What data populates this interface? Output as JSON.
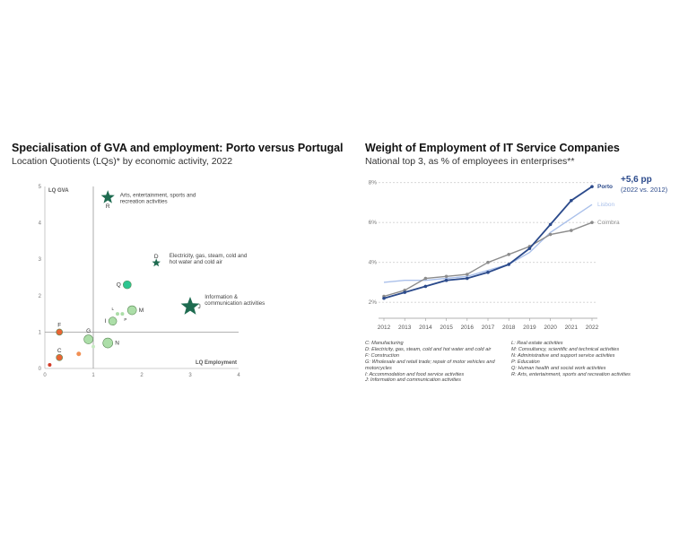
{
  "chart_data": [
    {
      "type": "scatter",
      "title": "Specialisation of GVA and employment: Porto versus Portugal",
      "subtitle": "Location Quotients (LQs)* by economic activity, 2022",
      "xlabel": "LQ Employment",
      "ylabel": "LQ GVA",
      "xlim": [
        0,
        4
      ],
      "ylim": [
        0,
        5
      ],
      "xticks": [
        "0",
        "1",
        "2",
        "3",
        "4"
      ],
      "yticks": [
        "0",
        "1",
        "2",
        "3",
        "4",
        "5"
      ],
      "reference_lines": {
        "x": 1,
        "y": 1
      },
      "colors": {
        "low": "#e85d2a",
        "mid": "#a8dca3",
        "high": "#22c28a",
        "star": "#1e6b50"
      },
      "points": [
        {
          "label": "",
          "x": 0.1,
          "y": 0.1,
          "size": 3,
          "color": "#d0311c",
          "shape": "circle",
          "label_pos": "none"
        },
        {
          "label": "C",
          "x": 0.3,
          "y": 0.3,
          "size": 6,
          "color": "#e85d2a",
          "shape": "circle",
          "label_pos": "above"
        },
        {
          "label": "",
          "x": 0.7,
          "y": 0.4,
          "size": 4,
          "color": "#f08a4b",
          "shape": "circle",
          "label_pos": "none"
        },
        {
          "label": "F",
          "x": 0.3,
          "y": 1.0,
          "size": 6,
          "color": "#e85d2a",
          "shape": "circle",
          "label_pos": "above"
        },
        {
          "label": "G",
          "x": 0.9,
          "y": 0.8,
          "size": 9,
          "color": "#a8dca3",
          "shape": "circle",
          "label_pos": "above"
        },
        {
          "label": "",
          "x": 1.0,
          "y": 0.6,
          "size": 3,
          "color": "#c6ebc1",
          "shape": "circle",
          "label_pos": "none"
        },
        {
          "label": "N",
          "x": 1.3,
          "y": 0.7,
          "size": 10,
          "color": "#a8dca3",
          "shape": "circle",
          "label_pos": "right"
        },
        {
          "label": "I",
          "x": 1.4,
          "y": 1.3,
          "size": 8,
          "color": "#a8dca3",
          "shape": "circle",
          "label_pos": "left"
        },
        {
          "label": "L",
          "x": 1.5,
          "y": 1.5,
          "size": 3,
          "color": "#a8dca3",
          "shape": "circle",
          "label_pos": "above-left"
        },
        {
          "label": "P",
          "x": 1.6,
          "y": 1.5,
          "size": 3,
          "color": "#a8dca3",
          "shape": "circle",
          "label_pos": "below-right"
        },
        {
          "label": "M",
          "x": 1.8,
          "y": 1.6,
          "size": 9,
          "color": "#a8dca3",
          "shape": "circle",
          "label_pos": "right"
        },
        {
          "label": "Q",
          "x": 1.7,
          "y": 2.3,
          "size": 8,
          "color": "#22c28a",
          "shape": "circle",
          "label_pos": "left"
        },
        {
          "label": "R",
          "x": 1.3,
          "y": 4.7,
          "size": 8,
          "color": "#1e6b50",
          "shape": "star",
          "label_pos": "below"
        },
        {
          "label": "D",
          "x": 2.3,
          "y": 2.9,
          "size": 5,
          "color": "#1e6b50",
          "shape": "star",
          "label_pos": "above"
        },
        {
          "label": "J",
          "x": 3.0,
          "y": 1.7,
          "size": 11,
          "color": "#1e6b50",
          "shape": "star",
          "label_pos": "right"
        }
      ],
      "annotations": [
        {
          "text": "Arts, entertainment, sports and",
          "x": 1.55,
          "y": 4.72
        },
        {
          "text": "recreation activities",
          "x": 1.55,
          "y": 4.55
        },
        {
          "text": "Electricity, gas, steam, cold and",
          "x": 2.57,
          "y": 3.05
        },
        {
          "text": "hot water and cold air",
          "x": 2.57,
          "y": 2.88
        },
        {
          "text": "Information &",
          "x": 3.3,
          "y": 1.92
        },
        {
          "text": "communication activities",
          "x": 3.3,
          "y": 1.75
        }
      ],
      "legend": {
        "left": [
          "C: Manufacturing",
          "D: Electricity, gas, steam, cold and hot water and cold air",
          "F: Construction",
          "G: Wholesale and retail trade; repair of motor vehicles and",
          "motorcycles",
          "I: Accommodation and food service activities",
          "J: Information and communication activities"
        ],
        "right": [
          "L: Real estate activities",
          "M: Consultancy, scientific and technical activities",
          "N: Administrative and support service activities",
          "P: Education",
          "Q: Human health and social work activities",
          "R: Arts, entertainment, sports and recreation activities"
        ]
      }
    },
    {
      "type": "line",
      "title": "Weight of Employment of IT Service Companies",
      "subtitle": "National top 3, as % of employees in enterprises**",
      "x": [
        "2012",
        "2013",
        "2014",
        "2015",
        "2016",
        "2017",
        "2018",
        "2019",
        "2020",
        "2021",
        "2022"
      ],
      "yticks": [
        "2%",
        "4%",
        "6%",
        "8%"
      ],
      "ylim": [
        1.2,
        8.3
      ],
      "grid": true,
      "series": [
        {
          "name": "Porto",
          "color": "#2b4a8b",
          "marker": true,
          "values": [
            2.2,
            2.5,
            2.8,
            3.1,
            3.2,
            3.5,
            3.9,
            4.7,
            5.9,
            7.1,
            7.8
          ]
        },
        {
          "name": "Lisbon",
          "color": "#aac0ea",
          "marker": false,
          "values": [
            3.0,
            3.1,
            3.1,
            3.2,
            3.3,
            3.6,
            3.9,
            4.5,
            5.5,
            6.2,
            6.9
          ]
        },
        {
          "name": "Coimbra",
          "color": "#8c8c8c",
          "marker": true,
          "values": [
            2.3,
            2.6,
            3.2,
            3.3,
            3.4,
            4.0,
            4.4,
            4.8,
            5.4,
            5.6,
            6.0
          ]
        }
      ],
      "annotation": {
        "headline": "+5,6 pp",
        "detail": "(2022 vs. 2012)",
        "color": "#2b4a8b"
      }
    }
  ]
}
